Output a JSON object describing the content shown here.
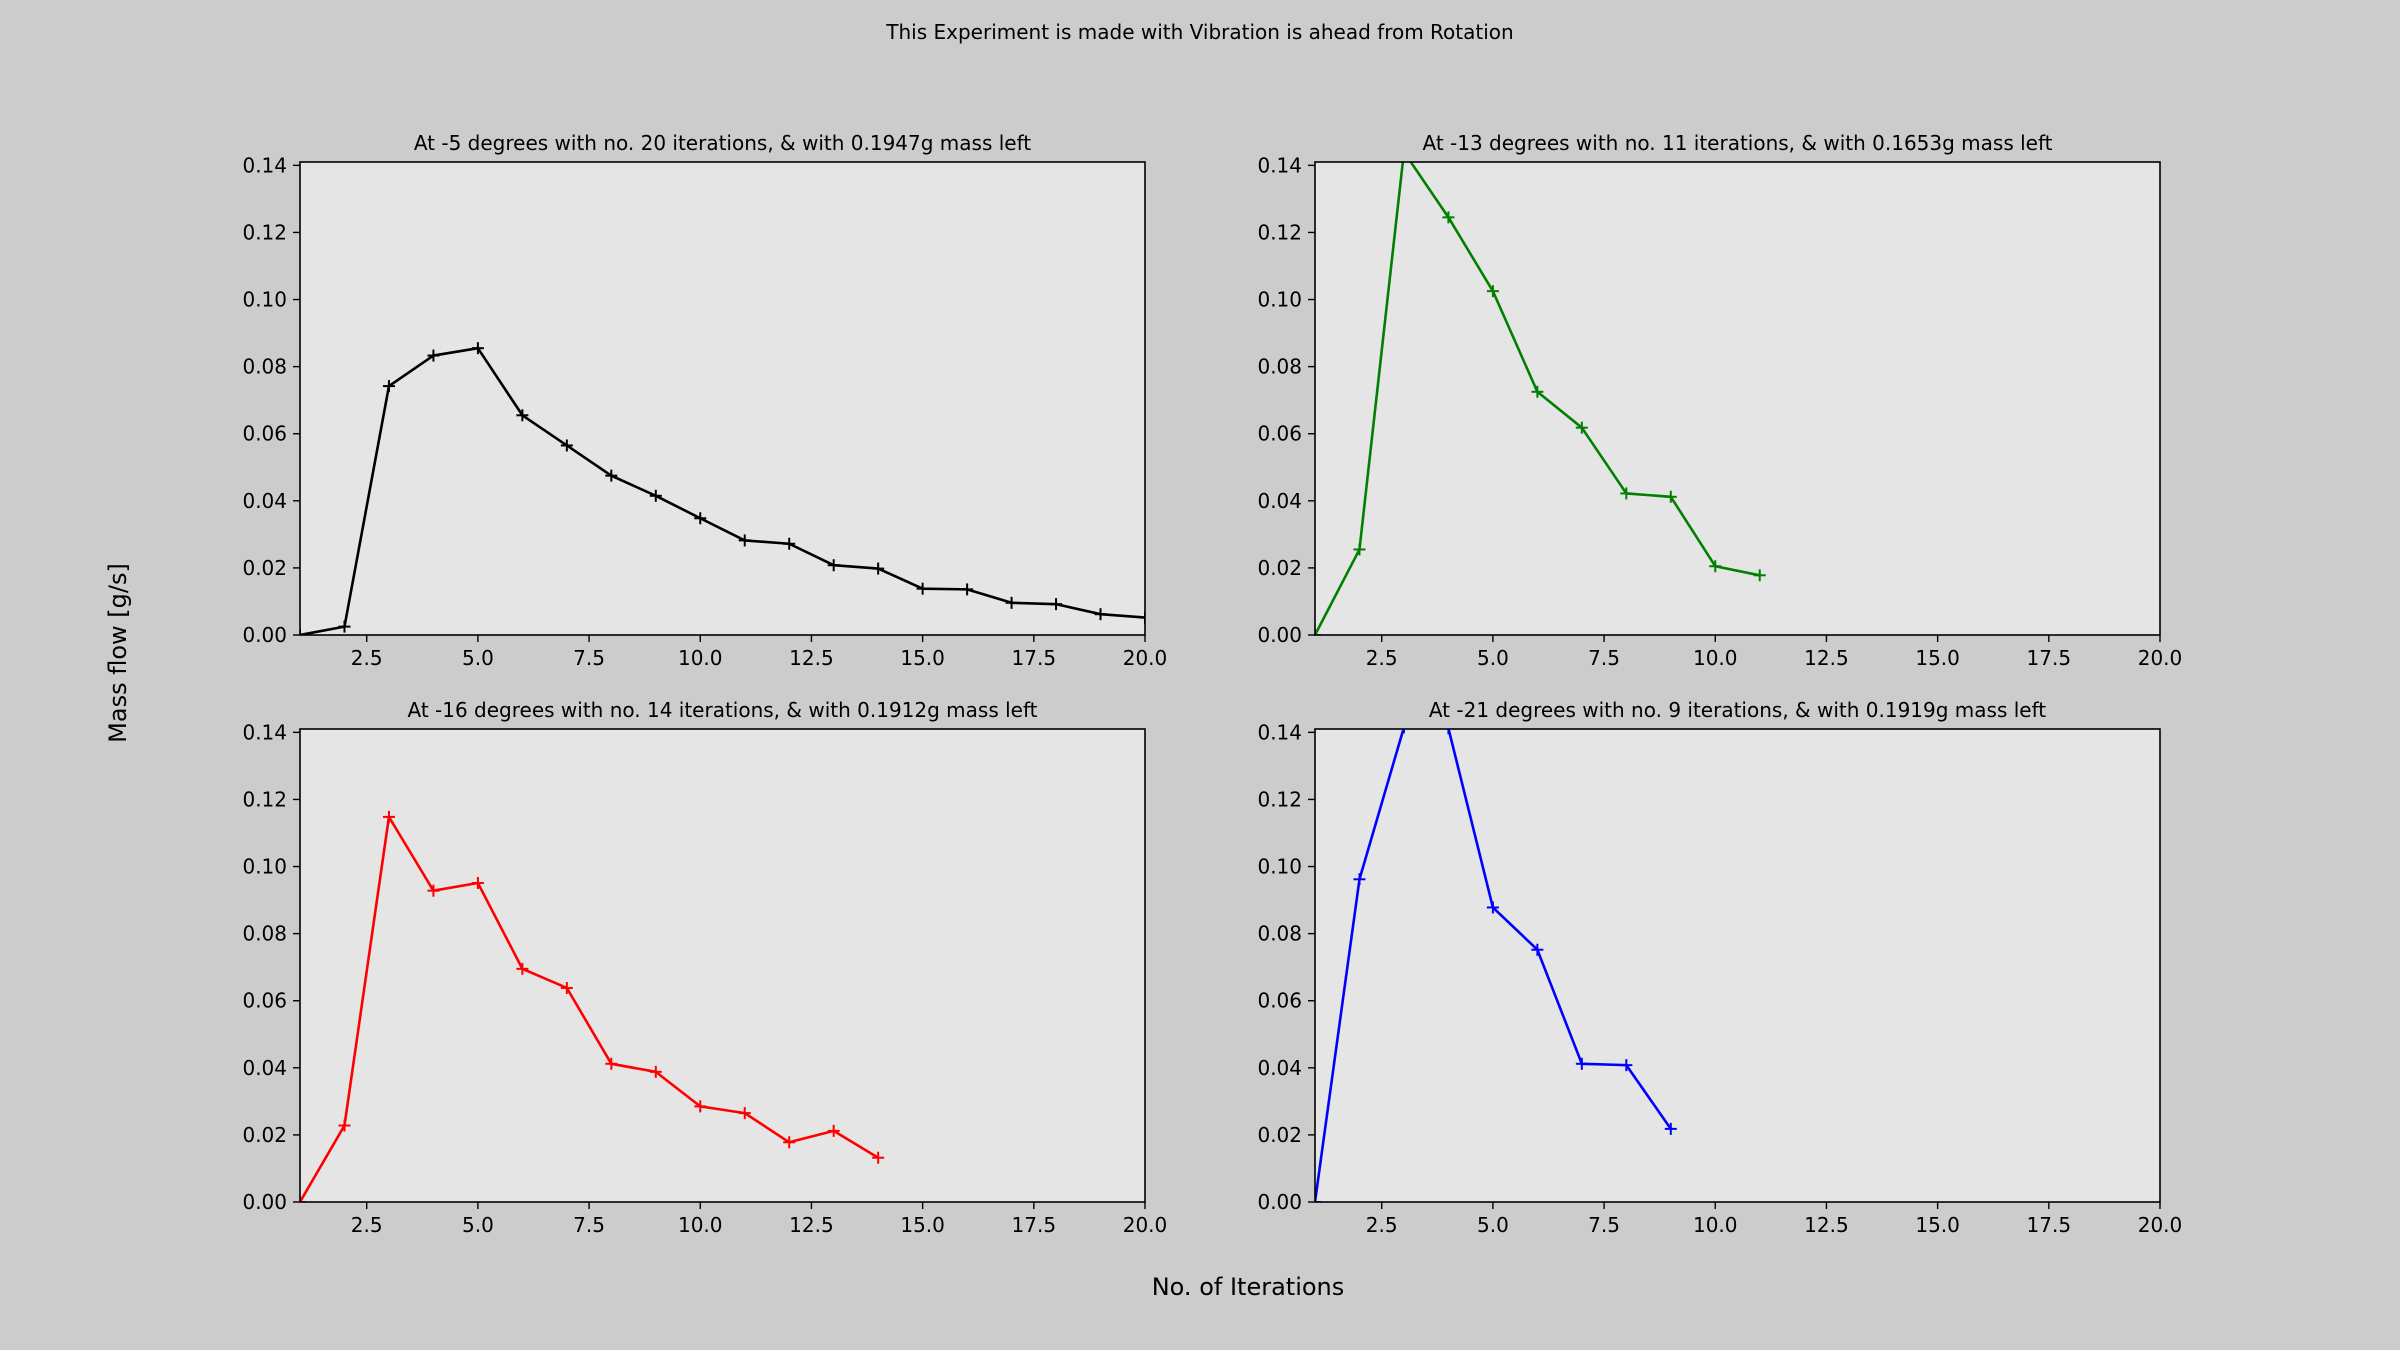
{
  "figure": {
    "suptitle": "This Experiment is made with Vibration is ahead from Rotation",
    "xlabel": "No. of Iterations",
    "ylabel": "Mass flow [g/s]"
  },
  "chart_data": [
    {
      "type": "line",
      "title": "At -5 degrees with no. 20 iterations, & with 0.1947g mass left",
      "color": "#000000",
      "marker": "+",
      "xlim": [
        1,
        20
      ],
      "ylim": [
        0,
        0.141
      ],
      "xticks": [
        2.5,
        5.0,
        7.5,
        10.0,
        12.5,
        15.0,
        17.5,
        20.0
      ],
      "xtick_labels": [
        "2.5",
        "5.0",
        "7.5",
        "10.0",
        "12.5",
        "15.0",
        "17.5",
        "20.0"
      ],
      "yticks": [
        0.0,
        0.02,
        0.04,
        0.06,
        0.08,
        0.1,
        0.12,
        0.14
      ],
      "ytick_labels": [
        "0.00",
        "0.02",
        "0.04",
        "0.06",
        "0.08",
        "0.10",
        "0.12",
        "0.14"
      ],
      "x": [
        1,
        2,
        3,
        4,
        5,
        6,
        7,
        8,
        9,
        10,
        11,
        12,
        13,
        14,
        15,
        16,
        17,
        18,
        19,
        20
      ],
      "y": [
        0.0,
        0.0025,
        0.0742,
        0.0833,
        0.0855,
        0.0655,
        0.0565,
        0.0475,
        0.0415,
        0.0348,
        0.0282,
        0.0272,
        0.0208,
        0.0198,
        0.0138,
        0.0136,
        0.0096,
        0.0092,
        0.0062,
        0.0052
      ]
    },
    {
      "type": "line",
      "title": "At -13 degrees with no. 11 iterations, & with 0.1653g mass left",
      "color": "#008000",
      "marker": "+",
      "xlim": [
        1,
        20
      ],
      "ylim": [
        0,
        0.141
      ],
      "xticks": [
        2.5,
        5.0,
        7.5,
        10.0,
        12.5,
        15.0,
        17.5,
        20.0
      ],
      "xtick_labels": [
        "2.5",
        "5.0",
        "7.5",
        "10.0",
        "12.5",
        "15.0",
        "17.5",
        "20.0"
      ],
      "yticks": [
        0.0,
        0.02,
        0.04,
        0.06,
        0.08,
        0.1,
        0.12,
        0.14
      ],
      "ytick_labels": [
        "0.00",
        "0.02",
        "0.04",
        "0.06",
        "0.08",
        "0.10",
        "0.12",
        "0.14"
      ],
      "x": [
        1,
        2,
        3,
        4,
        5,
        6,
        7,
        8,
        9,
        10,
        11
      ],
      "y": [
        0.0,
        0.0255,
        0.144,
        0.1245,
        0.1025,
        0.0725,
        0.0618,
        0.0422,
        0.0412,
        0.0205,
        0.0178
      ]
    },
    {
      "type": "line",
      "title": "At -16 degrees with no. 14 iterations, & with 0.1912g mass left",
      "color": "#ff0000",
      "marker": "+",
      "xlim": [
        1,
        20
      ],
      "ylim": [
        0,
        0.141
      ],
      "xticks": [
        2.5,
        5.0,
        7.5,
        10.0,
        12.5,
        15.0,
        17.5,
        20.0
      ],
      "xtick_labels": [
        "2.5",
        "5.0",
        "7.5",
        "10.0",
        "12.5",
        "15.0",
        "17.5",
        "20.0"
      ],
      "yticks": [
        0.0,
        0.02,
        0.04,
        0.06,
        0.08,
        0.1,
        0.12,
        0.14
      ],
      "ytick_labels": [
        "0.00",
        "0.02",
        "0.04",
        "0.06",
        "0.08",
        "0.10",
        "0.12",
        "0.14"
      ],
      "x": [
        1,
        2,
        3,
        4,
        5,
        6,
        7,
        8,
        9,
        10,
        11,
        12,
        13,
        14
      ],
      "y": [
        0.0,
        0.0228,
        0.1148,
        0.0928,
        0.0951,
        0.0695,
        0.0638,
        0.0412,
        0.0388,
        0.0285,
        0.0265,
        0.0178,
        0.0212,
        0.0132
      ]
    },
    {
      "type": "line",
      "title": "At -21 degrees with no. 9 iterations, & with 0.1919g mass left",
      "color": "#0000ff",
      "marker": "+",
      "xlim": [
        1,
        20
      ],
      "ylim": [
        0,
        0.141
      ],
      "xticks": [
        2.5,
        5.0,
        7.5,
        10.0,
        12.5,
        15.0,
        17.5,
        20.0
      ],
      "xtick_labels": [
        "2.5",
        "5.0",
        "7.5",
        "10.0",
        "12.5",
        "15.0",
        "17.5",
        "20.0"
      ],
      "yticks": [
        0.0,
        0.02,
        0.04,
        0.06,
        0.08,
        0.1,
        0.12,
        0.14
      ],
      "ytick_labels": [
        "0.00",
        "0.02",
        "0.04",
        "0.06",
        "0.08",
        "0.10",
        "0.12",
        "0.14"
      ],
      "x": [
        1,
        2,
        3,
        4,
        5,
        6,
        7,
        8,
        9
      ],
      "y": [
        0.0,
        0.0962,
        0.1415,
        0.1412,
        0.0878,
        0.0752,
        0.0412,
        0.0408,
        0.0218
      ]
    }
  ]
}
